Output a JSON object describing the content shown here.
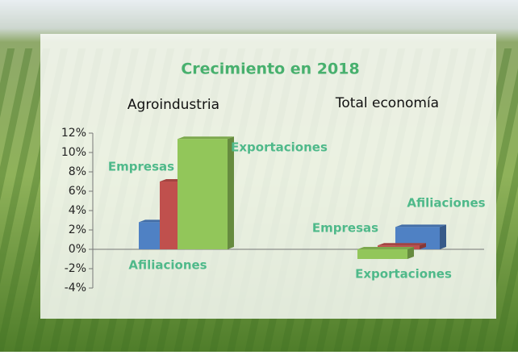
{
  "chart_data": {
    "type": "bar3d",
    "title": "Crecimiento en 2018",
    "categories": [
      "Agroindustria",
      "Total economía"
    ],
    "series": [
      {
        "name": "Afiliaciones",
        "color": "#4f81c4",
        "values": [
          2.8,
          2.3
        ]
      },
      {
        "name": "Empresas",
        "color": "#c0504d",
        "values": [
          7.0,
          0.4
        ]
      },
      {
        "name": "Exportaciones",
        "color": "#92c65a",
        "values": [
          11.4,
          -1.0
        ]
      }
    ],
    "ylim": [
      -4,
      12
    ],
    "yticks": [
      {
        "value": -4,
        "label": "-4%"
      },
      {
        "value": -2,
        "label": "-2%"
      },
      {
        "value": 0,
        "label": "0%"
      },
      {
        "value": 2,
        "label": "2%"
      },
      {
        "value": 4,
        "label": "4%"
      },
      {
        "value": 6,
        "label": "6%"
      },
      {
        "value": 8,
        "label": "8%"
      },
      {
        "value": 10,
        "label": "10%"
      },
      {
        "value": 12,
        "label": "12%"
      }
    ],
    "label_color": "#4fb98a",
    "title_color": "#48b06e"
  }
}
